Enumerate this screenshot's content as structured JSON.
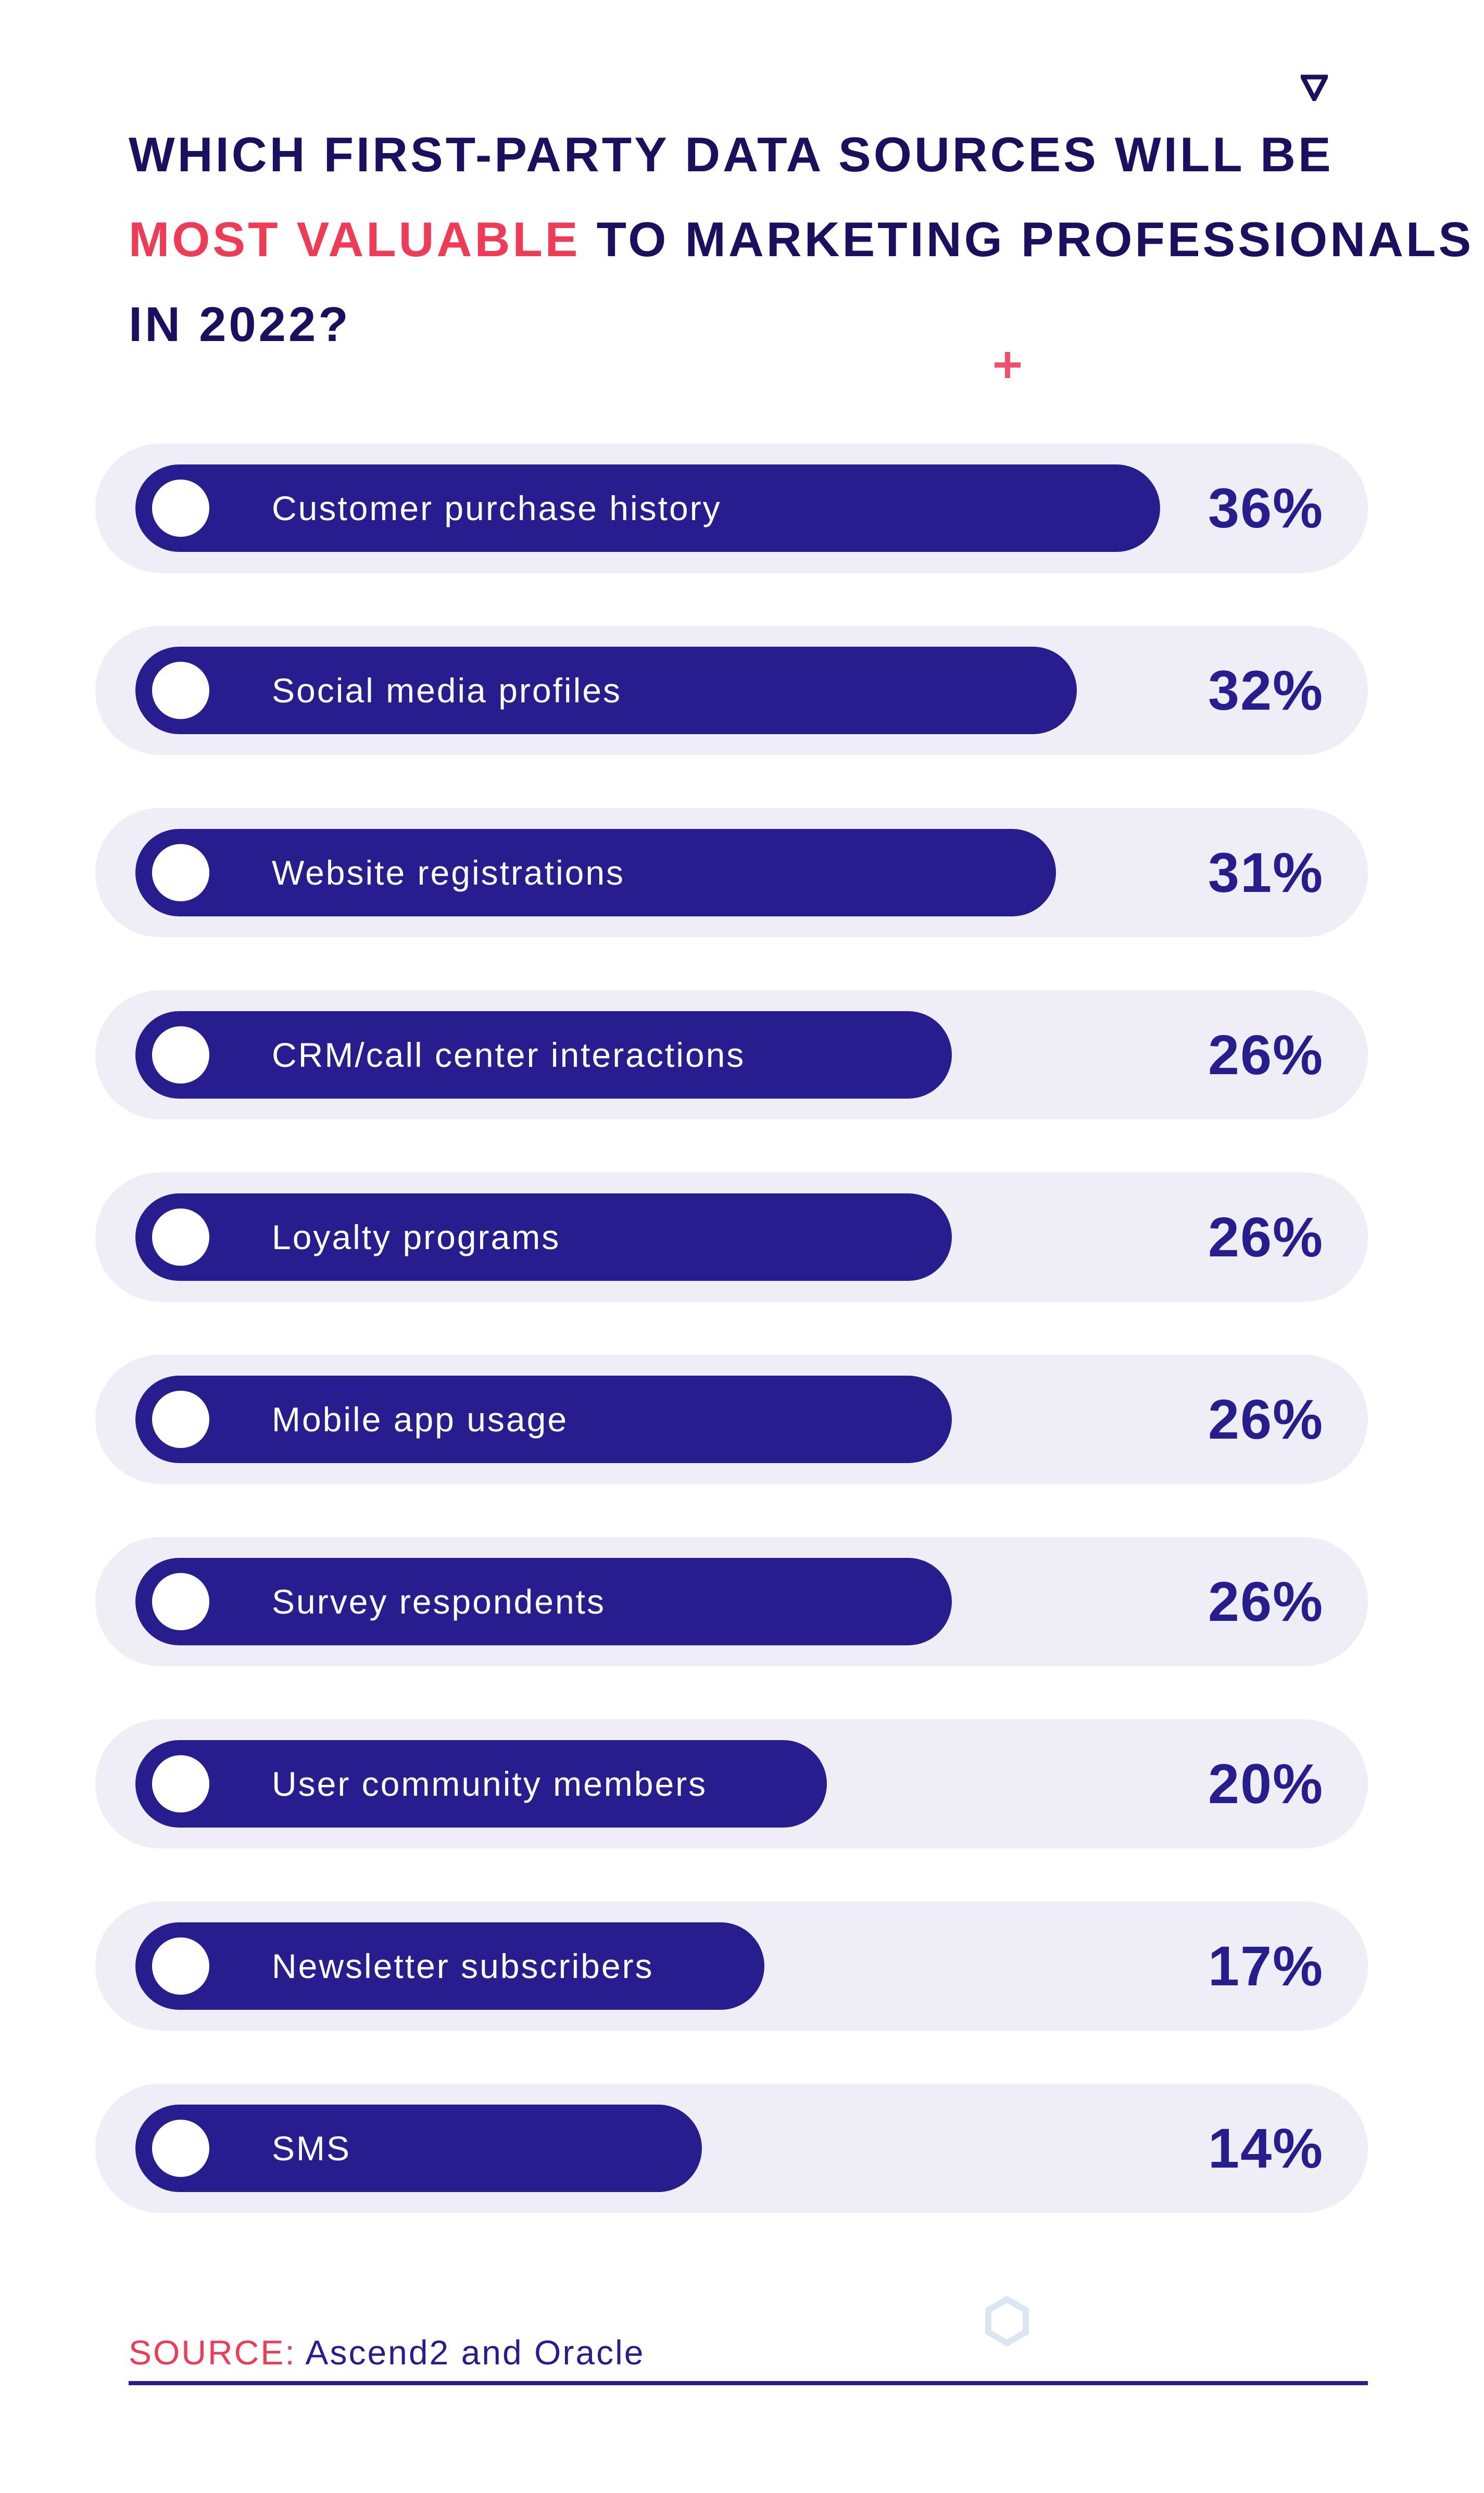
{
  "title": {
    "part1": "Which first-party data sources will be ",
    "highlight": "most valuable",
    "part2": " to marketing professionals in 2022?"
  },
  "colors": {
    "bar": "#271d8e",
    "track": "#efeef7",
    "accent": "#ef3b55",
    "title": "#1a1060"
  },
  "decorations": [
    "triangle-icon",
    "plus-icon",
    "hexagon-icon"
  ],
  "chart_data": {
    "type": "bar",
    "orientation": "horizontal",
    "categories": [
      "Customer purchase history",
      "Social media profiles",
      "Website registrations",
      "CRM/call center interactions",
      "Loyalty programs",
      "Mobile app usage",
      "Survey respondents",
      "User community members",
      "Newsletter subscribers",
      "SMS"
    ],
    "values": [
      36,
      32,
      31,
      26,
      26,
      26,
      26,
      20,
      17,
      14
    ],
    "value_labels": [
      "36%",
      "32%",
      "31%",
      "26%",
      "26%",
      "26%",
      "26%",
      "20%",
      "17%",
      "14%"
    ],
    "unit": "%",
    "grid": false
  },
  "source": {
    "label": "SOURCE:",
    "value": "Ascend2 and Oracle"
  }
}
